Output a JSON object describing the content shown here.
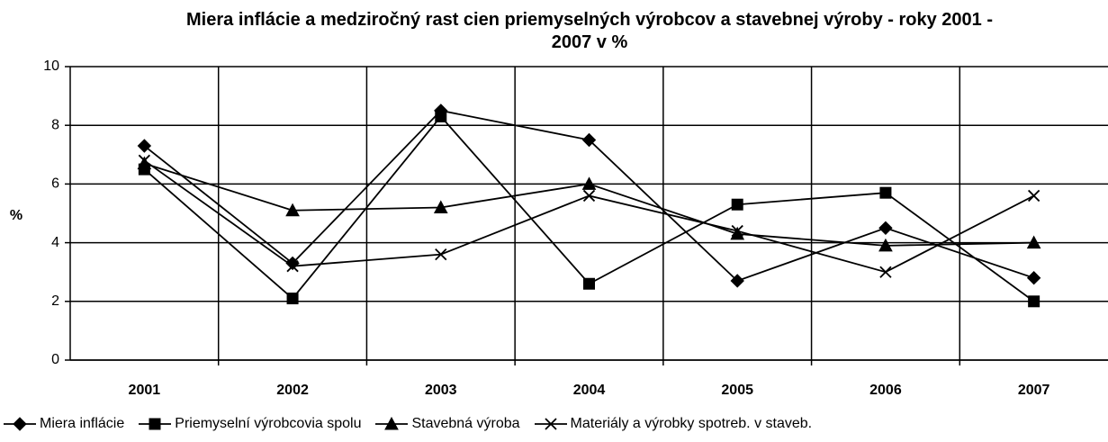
{
  "chart_data": {
    "type": "line",
    "title": "Miera inflácie a medziročný rast cien priemyselných výrobcov a stavebnej výroby - roky 2001 - 2007 v %",
    "ylabel": "%",
    "categories": [
      "2001",
      "2002",
      "2003",
      "2004",
      "2005",
      "2006",
      "2007"
    ],
    "series": [
      {
        "name": "Miera inflácie",
        "color": "#000000",
        "marker": "diamond",
        "values": [
          7.3,
          3.3,
          8.5,
          7.5,
          2.7,
          4.5,
          2.8
        ]
      },
      {
        "name": "Priemyselní výrobcovia spolu",
        "color": "#000000",
        "marker": "square",
        "values": [
          6.5,
          2.1,
          8.3,
          2.6,
          5.3,
          5.7,
          2.0
        ]
      },
      {
        "name": "Stavebná výroba",
        "color": "#000000",
        "marker": "triangle",
        "values": [
          6.7,
          5.1,
          5.2,
          6.0,
          4.3,
          3.9,
          4.0
        ]
      },
      {
        "name": "Materiály a výrobky spotreb. v staveb.",
        "color": "#000000",
        "marker": "x",
        "values": [
          6.8,
          3.2,
          3.6,
          5.6,
          4.4,
          3.0,
          5.6
        ]
      }
    ],
    "ylim": [
      0,
      10
    ],
    "yticks": [
      0,
      2,
      4,
      6,
      8,
      10
    ],
    "grid": true,
    "legend": "bottom"
  }
}
